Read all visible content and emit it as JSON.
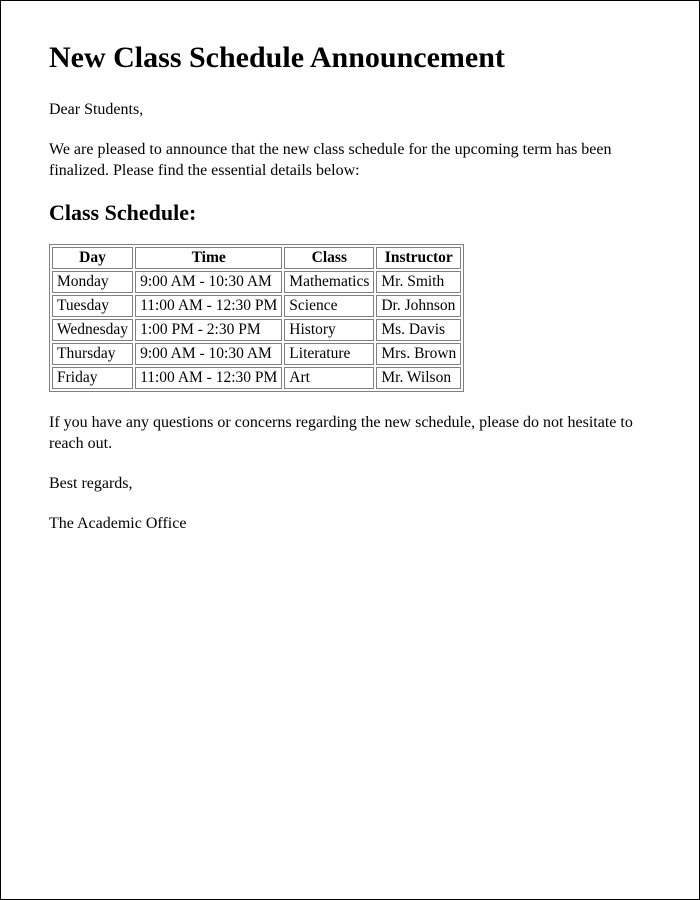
{
  "title": "New Class Schedule Announcement",
  "greeting": "Dear Students,",
  "intro": "We are pleased to announce that the new class schedule for the upcoming term has been finalized. Please find the essential details below:",
  "section_heading": "Class Schedule:",
  "table": {
    "columns": [
      "Day",
      "Time",
      "Class",
      "Instructor"
    ],
    "rows": [
      [
        "Monday",
        "9:00 AM - 10:30 AM",
        "Mathematics",
        "Mr. Smith"
      ],
      [
        "Tuesday",
        "11:00 AM - 12:30 PM",
        "Science",
        "Dr. Johnson"
      ],
      [
        "Wednesday",
        "1:00 PM - 2:30 PM",
        "History",
        "Ms. Davis"
      ],
      [
        "Thursday",
        "9:00 AM - 10:30 AM",
        "Literature",
        "Mrs. Brown"
      ],
      [
        "Friday",
        "11:00 AM - 12:30 PM",
        "Art",
        "Mr. Wilson"
      ]
    ],
    "border_color": "#808080",
    "cell_padding": "1px 4px",
    "header_fontweight": "bold",
    "fontsize": 15.5
  },
  "closing_note": "If you have any questions or concerns regarding the new schedule, please do not hesitate to reach out.",
  "signoff": "Best regards,",
  "sender": "The Academic Office",
  "page_border_color": "#000000",
  "background_color": "#ffffff",
  "text_color": "#000000",
  "font_family": "Times New Roman",
  "h1_fontsize": 30,
  "h2_fontsize": 22,
  "body_fontsize": 16
}
